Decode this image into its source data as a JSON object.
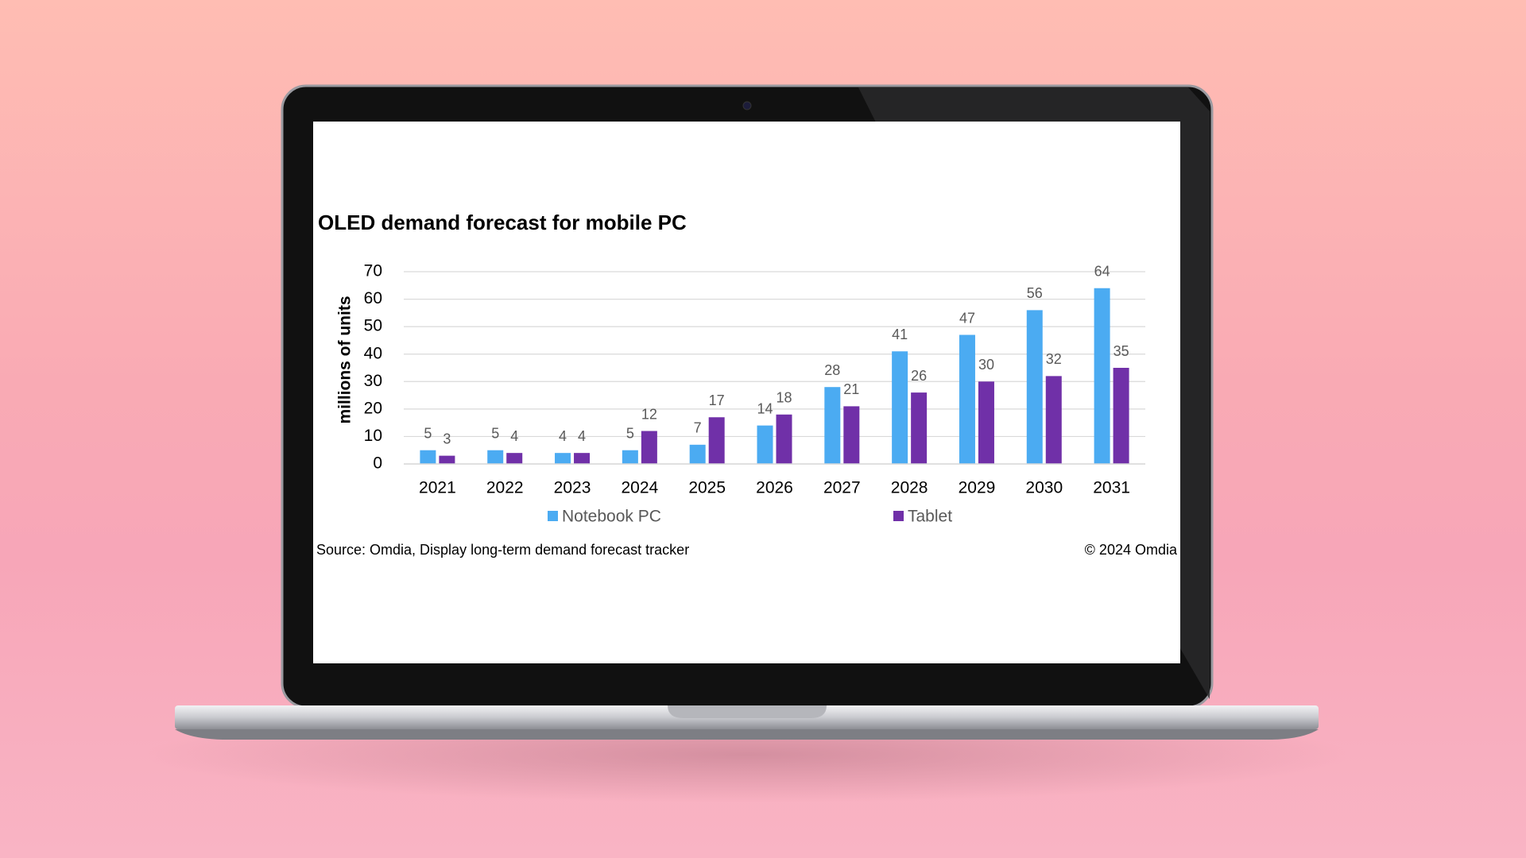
{
  "chart_data": {
    "type": "bar",
    "title": "OLED demand forecast for mobile PC",
    "ylabel": "millions of units",
    "categories": [
      "2021",
      "2022",
      "2023",
      "2024",
      "2025",
      "2026",
      "2027",
      "2028",
      "2029",
      "2030",
      "2031"
    ],
    "series": [
      {
        "name": "Notebook PC",
        "color": "#4babf2",
        "values": [
          5,
          5,
          4,
          5,
          7,
          14,
          28,
          41,
          47,
          56,
          64
        ]
      },
      {
        "name": "Tablet",
        "color": "#7030a8",
        "values": [
          3,
          4,
          4,
          12,
          17,
          18,
          21,
          26,
          30,
          32,
          35
        ]
      }
    ],
    "ylim": [
      0,
      70
    ],
    "yticks": [
      0,
      10,
      20,
      30,
      40,
      50,
      60,
      70
    ],
    "grid": true,
    "legend": "bottom",
    "source": "Source: Omdia, Display long-term demand forecast tracker",
    "copyright": "© 2024 Omdia"
  }
}
